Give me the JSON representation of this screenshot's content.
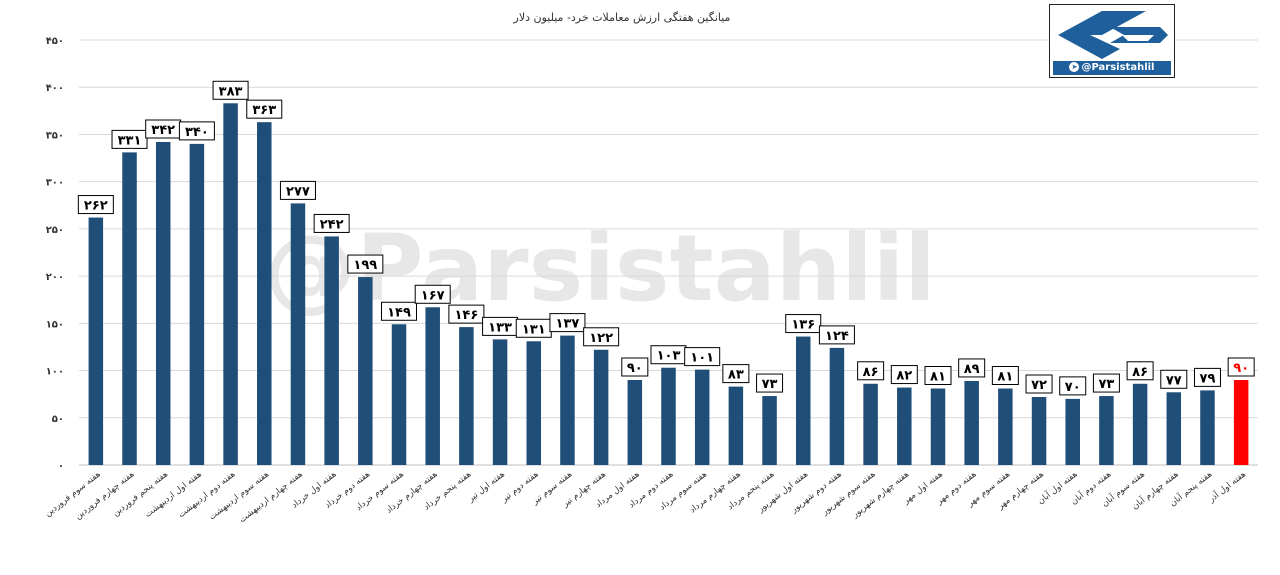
{
  "logo": {
    "handle": "@Parsistahlil",
    "icon": "telegram-icon"
  },
  "watermark": "@Parsistahlil",
  "chart_data": {
    "type": "bar",
    "title": "میانگین هفتگی ارزش معاملات خرد- میلیون دلار",
    "ylim": [
      0,
      450
    ],
    "yticks": [
      "۰",
      "۵۰",
      "۱۰۰",
      "۱۵۰",
      "۲۰۰",
      "۲۵۰",
      "۳۰۰",
      "۳۵۰",
      "۴۰۰",
      "۴۵۰"
    ],
    "grid": true,
    "categories": [
      "هفته سوم فروردین",
      "هفته چهارم فروردین",
      "هفته پنجم فروردین",
      "هفته اول اردیبهشت",
      "هفته دوم اردیبهشت",
      "هفته سوم اردیبهشت",
      "هفته چهارم اردیبهشت",
      "هفته اول خرداد",
      "هفته دوم خرداد",
      "هفته سوم خرداد",
      "هفته چهارم خرداد",
      "هفته پنجم خرداد",
      "هفته اول تیر",
      "هفته دوم تیر",
      "هفته سوم تیر",
      "هفته چهارم تیر",
      "هفته اول مرداد",
      "هفته دوم مرداد",
      "هفته سوم مرداد",
      "هفته چهارم مرداد",
      "هفته پنجم مرداد",
      "هفته اول شهریور",
      "هفته دوم شهریور",
      "هفته سوم شهریور",
      "هفته چهارم شهریور",
      "هفته اول مهر",
      "هفته دوم مهر",
      "هفته سوم مهر",
      "هفته چهارم مهر",
      "هفته اول آبان",
      "هفته دوم آبان",
      "هفته سوم آبان",
      "هفته چهارم آبان",
      "هفته پنجم آبان",
      "هفته اول آذر"
    ],
    "values": [
      262,
      331,
      342,
      340,
      383,
      363,
      277,
      242,
      199,
      149,
      167,
      146,
      133,
      131,
      137,
      122,
      90,
      103,
      101,
      83,
      73,
      136,
      124,
      86,
      82,
      81,
      89,
      81,
      72,
      70,
      73,
      86,
      77,
      79,
      90
    ],
    "value_labels": [
      "۲۶۲",
      "۳۳۱",
      "۳۴۲",
      "۳۴۰",
      "۳۸۳",
      "۳۶۳",
      "۲۷۷",
      "۲۴۲",
      "۱۹۹",
      "۱۴۹",
      "۱۶۷",
      "۱۴۶",
      "۱۳۳",
      "۱۳۱",
      "۱۳۷",
      "۱۲۲",
      "۹۰",
      "۱۰۳",
      "۱۰۱",
      "۸۳",
      "۷۳",
      "۱۳۶",
      "۱۲۴",
      "۸۶",
      "۸۲",
      "۸۱",
      "۸۹",
      "۸۱",
      "۷۲",
      "۷۰",
      "۷۳",
      "۸۶",
      "۷۷",
      "۷۹",
      "۹۰"
    ],
    "colors": {
      "bar": "#1f4e79",
      "highlight": "#ff0000",
      "highlight_label": "#ff0000",
      "grid": "#d9d9d9"
    },
    "highlight_index": 34
  }
}
